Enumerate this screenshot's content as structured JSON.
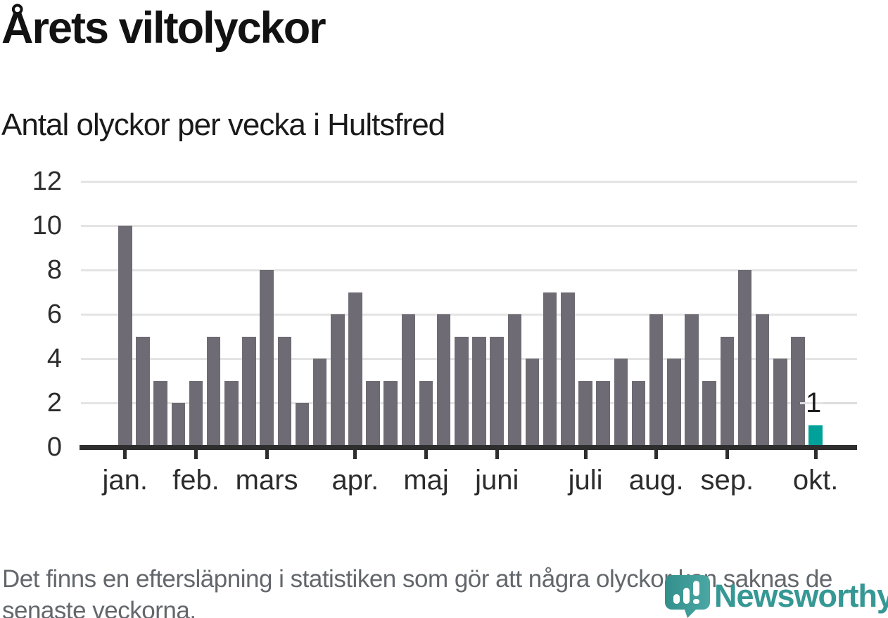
{
  "title": "Årets viltolyckor",
  "subtitle": "Antal olyckor per vecka i Hultsfred",
  "footer": {
    "lines": [
      "Det finns en eftersläpning i statistiken som gör att några olyckor kan saknas de",
      "senaste veckorna."
    ]
  },
  "branding": {
    "name": "Newsworthy",
    "logo_icon": "newsworthy-speech-bubble-with-bar-chart",
    "wordmark_color": "#369894",
    "icon_color_dark": "#338f8c",
    "icon_color_light": "#4aa7a3"
  },
  "colors": {
    "bar": "#6E6B74",
    "highlight": "#00A199",
    "gridline": "#E4E4E4",
    "axis": "#2E2E2E",
    "axis_text": "#2C2C2C",
    "annotation_text": "#1E1E1E",
    "annotation_line": "#DDDDDD",
    "footer_text": "#63676C"
  },
  "chart_data": {
    "type": "bar",
    "title": "Årets viltolyckor",
    "subtitle": "Antal olyckor per vecka i Hultsfred",
    "x_unit": "vecka (week), 40 weekly bars jan–okt",
    "values": [
      10,
      5,
      3,
      2,
      3,
      5,
      3,
      5,
      8,
      5,
      2,
      4,
      6,
      7,
      3,
      3,
      6,
      3,
      6,
      5,
      5,
      5,
      6,
      4,
      7,
      7,
      3,
      3,
      4,
      3,
      6,
      4,
      6,
      3,
      5,
      8,
      6,
      4,
      5,
      1
    ],
    "month_ticks": [
      {
        "label": "jan.",
        "week": 1
      },
      {
        "label": "feb.",
        "week": 5
      },
      {
        "label": "mars",
        "week": 9
      },
      {
        "label": "apr.",
        "week": 14
      },
      {
        "label": "maj",
        "week": 18
      },
      {
        "label": "juni",
        "week": 22
      },
      {
        "label": "juli",
        "week": 27
      },
      {
        "label": "aug.",
        "week": 31
      },
      {
        "label": "sep.",
        "week": 35
      },
      {
        "label": "okt.",
        "week": 40
      }
    ],
    "yticks": [
      0,
      2,
      4,
      6,
      8,
      10,
      12
    ],
    "ylim": [
      0,
      12
    ],
    "grid": true,
    "legend": "none",
    "highlight_last": true,
    "last_value_label": "1"
  }
}
